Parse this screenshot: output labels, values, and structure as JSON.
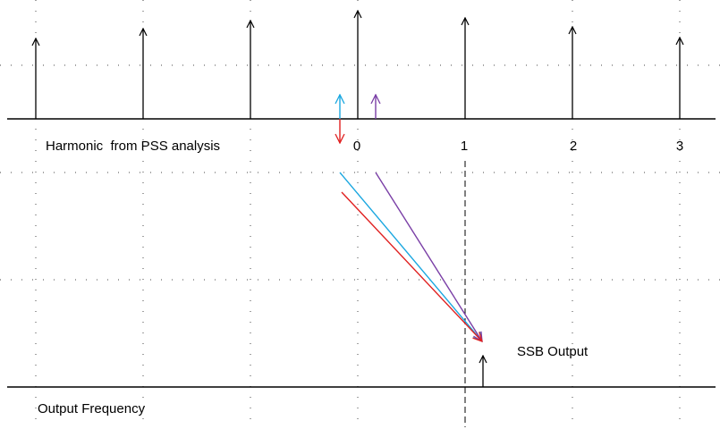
{
  "labels": {
    "top_axis": "Harmonic  from PSS analysis",
    "bottom_axis": "Output Frequency",
    "ssb_output": "SSB Output"
  },
  "harmonic_ticks": [
    "0",
    "1",
    "2",
    "3"
  ],
  "colors": {
    "axis": "#000000",
    "cyan": "#1aa7e0",
    "purple": "#7a3fa6",
    "red": "#e02020"
  },
  "mixing_arrows": [
    "cyan",
    "purple",
    "red"
  ]
}
